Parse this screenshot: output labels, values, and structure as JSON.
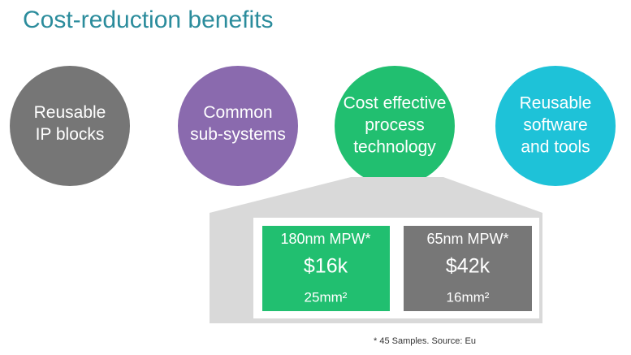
{
  "title": "Cost-reduction benefits",
  "circles": [
    {
      "lines": [
        "Reusable",
        "IP blocks"
      ]
    },
    {
      "lines": [
        "Common",
        "sub-systems"
      ]
    },
    {
      "lines": [
        "Cost effective",
        "process",
        "technology"
      ]
    },
    {
      "lines": [
        "Reusable",
        "software",
        "and tools"
      ]
    }
  ],
  "boxes": [
    {
      "label": "180nm MPW*",
      "price": "$16k",
      "area": "25mm²"
    },
    {
      "label": "65nm MPW*",
      "price": "$42k",
      "area": "16mm²"
    }
  ],
  "footnote": "* 45 Samples.  Source: Eu"
}
